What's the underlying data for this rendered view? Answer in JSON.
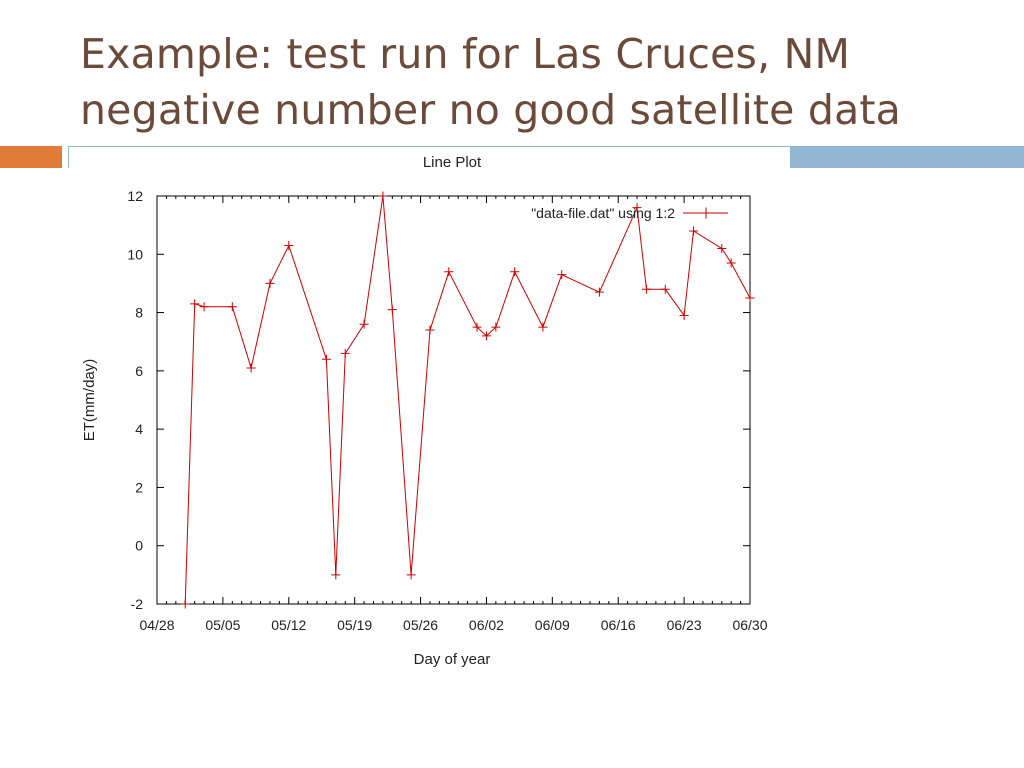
{
  "slide": {
    "title_line1": "Example: test run for Las Cruces, NM",
    "title_line2": "negative number no good satellite data"
  },
  "colors": {
    "title": "#6b4a3a",
    "accent_orange": "#e07b39",
    "accent_blue": "#93b6d4",
    "series": "#cc0000"
  },
  "chart_data": {
    "type": "line",
    "title": "Line Plot",
    "xlabel": "Day of year",
    "ylabel": "ET(mm/day)",
    "xlim": [
      "04/28",
      "06/30"
    ],
    "ylim": [
      -2,
      12
    ],
    "xticks": [
      "04/28",
      "05/05",
      "05/12",
      "05/19",
      "05/26",
      "06/02",
      "06/09",
      "06/16",
      "06/23",
      "06/30"
    ],
    "yticks": [
      -2,
      0,
      2,
      4,
      6,
      8,
      10,
      12
    ],
    "grid": false,
    "legend_position": "top-right",
    "series": [
      {
        "name": "\"data-file.dat\" using 1:2",
        "marker": "plus",
        "x": [
          "05/01",
          "05/02",
          "05/03",
          "05/06",
          "05/08",
          "05/10",
          "05/12",
          "05/16",
          "05/17",
          "05/18",
          "05/20",
          "05/22",
          "05/23",
          "05/25",
          "05/27",
          "05/29",
          "06/01",
          "06/02",
          "06/03",
          "06/05",
          "06/08",
          "06/10",
          "06/14",
          "06/18",
          "06/19",
          "06/21",
          "06/23",
          "06/24",
          "06/27",
          "06/28",
          "06/30"
        ],
        "y": [
          -2.0,
          8.3,
          8.2,
          8.2,
          6.1,
          9.0,
          10.3,
          6.4,
          -1.0,
          6.6,
          7.6,
          12.0,
          8.1,
          -1.0,
          7.4,
          9.4,
          7.5,
          7.2,
          7.5,
          9.4,
          7.5,
          9.3,
          8.7,
          11.6,
          8.8,
          8.8,
          7.9,
          10.8,
          10.2,
          9.7,
          8.5
        ]
      }
    ]
  }
}
